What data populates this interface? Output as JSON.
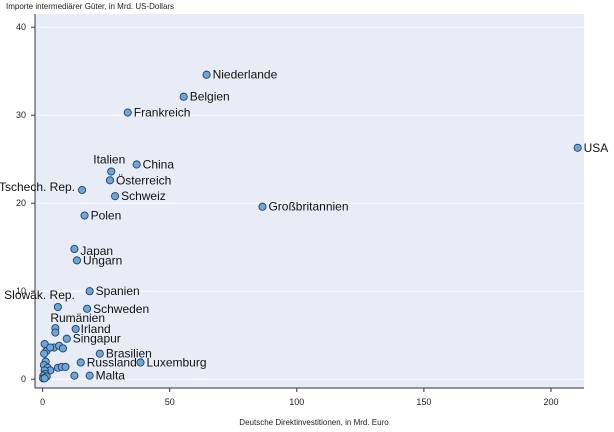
{
  "chart_data": {
    "type": "scatter",
    "ylabel": "Importe intermediärer Güter, in Mrd. US-Dollars",
    "xlabel": "Deutsche Direktinvestitionen, in Mrd. Euro",
    "xlim": [
      -3,
      213
    ],
    "ylim": [
      -1,
      41.5
    ],
    "x_ticks": [
      0,
      50,
      100,
      150,
      200
    ],
    "y_ticks": [
      0,
      10,
      20,
      30,
      40
    ],
    "grid": "horizontal",
    "colors": {
      "plot_bg": "#e8ecf7",
      "point_fill": "#6ea6d8",
      "point_stroke": "#1f3f6a",
      "grid": "#ffffff"
    },
    "points": [
      {
        "label": "Niederlande",
        "x": 64.5,
        "y": 34.6
      },
      {
        "label": "Belgien",
        "x": 55.5,
        "y": 32.1
      },
      {
        "label": "Frankreich",
        "x": 33.5,
        "y": 30.3
      },
      {
        "label": "USA",
        "x": 210.5,
        "y": 26.3
      },
      {
        "label": "Italien",
        "x": 27,
        "y": 23.6
      },
      {
        "label": "China",
        "x": 37,
        "y": 24.4
      },
      {
        "label": "Österreich",
        "x": 26.5,
        "y": 22.6
      },
      {
        "label": "Tschech. Rep.",
        "x": 15.5,
        "y": 21.5
      },
      {
        "label": "Schweiz",
        "x": 28.5,
        "y": 20.8
      },
      {
        "label": "Großbritannien",
        "x": 86.5,
        "y": 19.6
      },
      {
        "label": "Polen",
        "x": 16.5,
        "y": 18.6
      },
      {
        "label": "Japan",
        "x": 12.5,
        "y": 14.8
      },
      {
        "label": "Ungarn",
        "x": 13.5,
        "y": 13.5
      },
      {
        "label": "Spanien",
        "x": 18.5,
        "y": 10
      },
      {
        "label": "Slowak. Rep.",
        "x": 6,
        "y": 8.2
      },
      {
        "label": "Schweden",
        "x": 17.5,
        "y": 8
      },
      {
        "label": "Rumänien",
        "x": 5,
        "y": 5.8
      },
      {
        "label": "Irland",
        "x": 13,
        "y": 5.7
      },
      {
        "label": "Singapur",
        "x": 9.5,
        "y": 4.6
      },
      {
        "label": "Brasilien",
        "x": 22.5,
        "y": 2.9
      },
      {
        "label": "Russland",
        "x": 15,
        "y": 1.9
      },
      {
        "label": "Luxemburg",
        "x": 38.5,
        "y": 1.9
      },
      {
        "label": "Malta",
        "x": 18.5,
        "y": 0.4
      },
      {
        "label": "",
        "x": 5,
        "y": 5.3
      },
      {
        "label": "",
        "x": 0.8,
        "y": 4
      },
      {
        "label": "",
        "x": 4.5,
        "y": 3.6
      },
      {
        "label": "",
        "x": 1.5,
        "y": 3.2
      },
      {
        "label": "",
        "x": 3,
        "y": 3.6
      },
      {
        "label": "",
        "x": 6.5,
        "y": 3.8
      },
      {
        "label": "",
        "x": 8,
        "y": 3.5
      },
      {
        "label": "",
        "x": 0.6,
        "y": 2.9
      },
      {
        "label": "",
        "x": 1.2,
        "y": 2
      },
      {
        "label": "",
        "x": 0.5,
        "y": 1.6
      },
      {
        "label": "",
        "x": 2,
        "y": 1.3
      },
      {
        "label": "",
        "x": 3,
        "y": 1
      },
      {
        "label": "",
        "x": 0.8,
        "y": 1
      },
      {
        "label": "",
        "x": 6,
        "y": 1.3
      },
      {
        "label": "",
        "x": 7.5,
        "y": 1.4
      },
      {
        "label": "",
        "x": 9,
        "y": 1.4
      },
      {
        "label": "",
        "x": 1,
        "y": 0.6
      },
      {
        "label": "",
        "x": 0.3,
        "y": 0.4
      },
      {
        "label": "",
        "x": 1.6,
        "y": 0.3
      },
      {
        "label": "",
        "x": 0.2,
        "y": 0.1
      },
      {
        "label": "",
        "x": 0.8,
        "y": 0.1
      },
      {
        "label": "",
        "x": 12.5,
        "y": 0.4
      }
    ]
  }
}
